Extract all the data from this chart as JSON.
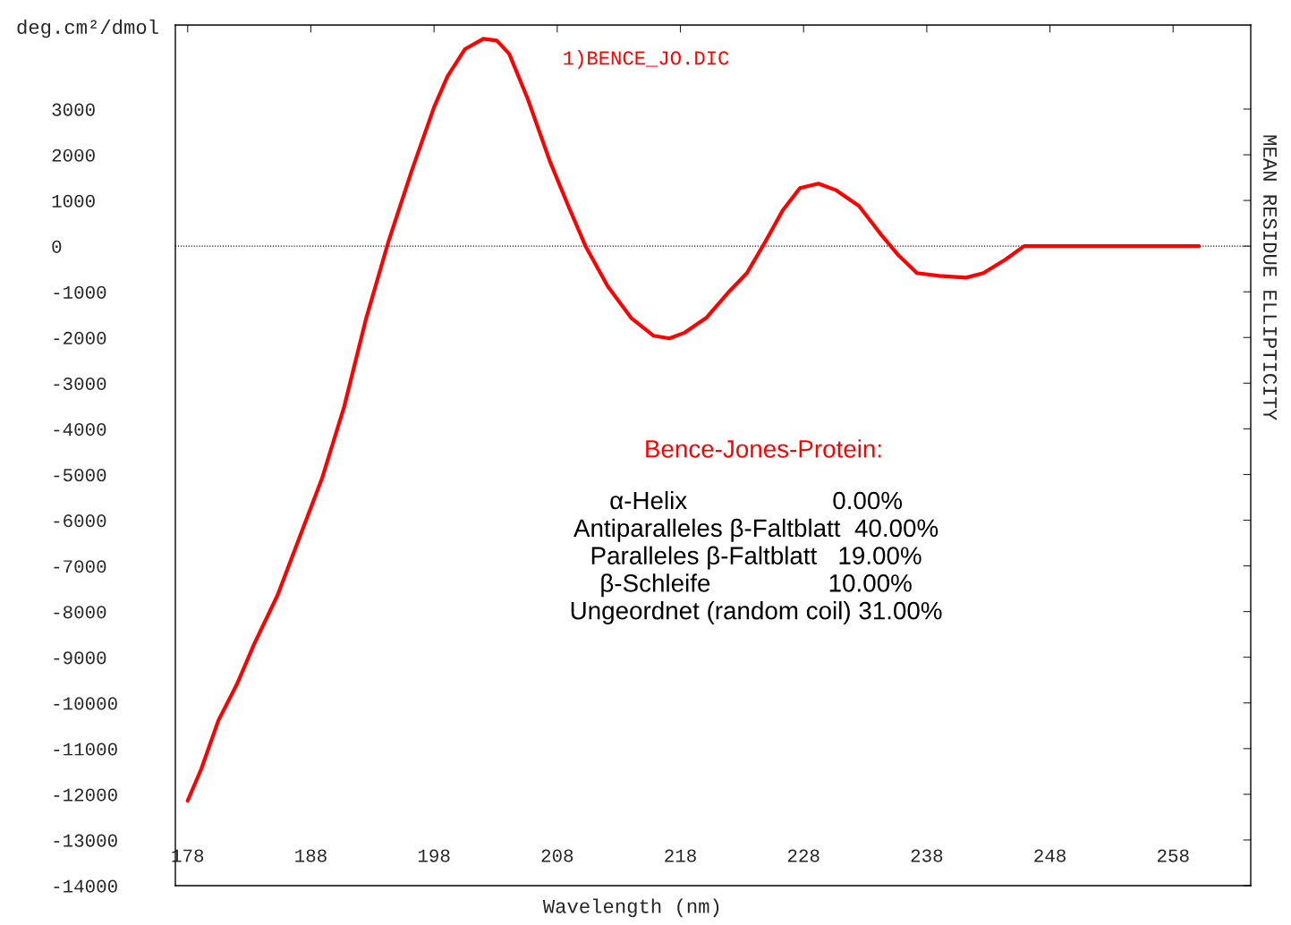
{
  "chart_data": {
    "type": "line",
    "ylabel": "deg.cm²/dmol",
    "xlabel": "Wavelength (nm)",
    "y2label": "MEAN RESIDUE ELLIPTICITY",
    "annotations": [
      "1)BENCE_JO.DIC",
      "Bence-Jones-Protein:",
      "α-Helix                     0.00%",
      "Antiparalleles β-Faltblatt  40.00%",
      "Paralleles β-Faltblatt   19.00%",
      "β-Schleife                 10.00%",
      "Ungeordnet (random coil) 31.00%"
    ],
    "series": [
      {
        "color": "#ff0000",
        "x": [
          178.0,
          179.1,
          180.5,
          182.0,
          183.4,
          185.3,
          187.1,
          188.9,
          190.7,
          192.5,
          194.3,
          196.2,
          198.0,
          199.1,
          200.5,
          202.0,
          203.1,
          204.1,
          205.6,
          207.4,
          208.9,
          210.3,
          212.1,
          214.0,
          215.8,
          217.1,
          218.3,
          220.1,
          222.0,
          223.4,
          224.9,
          226.3,
          227.7,
          229.2,
          230.6,
          232.5,
          234.3,
          235.7,
          237.2,
          239.0,
          241.2,
          242.6,
          244.4,
          245.9,
          249.9,
          260.1
        ],
        "values": [
          -12140,
          -11450,
          -10380,
          -9590,
          -8710,
          -7640,
          -6360,
          -5090,
          -3520,
          -1570,
          100,
          1660,
          3040,
          3720,
          4310,
          4540,
          4500,
          4210,
          3230,
          1860,
          880,
          0,
          -880,
          -1570,
          -1960,
          -2020,
          -1900,
          -1570,
          -980,
          -590,
          100,
          780,
          1270,
          1370,
          1230,
          880,
          250,
          -200,
          -590,
          -650,
          -690,
          -590,
          -290,
          0,
          0,
          0
        ]
      }
    ],
    "xlim": [
      177.0,
      264.3
    ],
    "xticks": [
      178,
      188,
      198,
      208,
      218,
      228,
      238,
      248,
      258
    ],
    "ylim": [
      -14000,
      4840
    ],
    "yticks": [
      -14000,
      -13000,
      -12000,
      -11000,
      -10000,
      -9000,
      -8000,
      -7000,
      -6000,
      -5000,
      -4000,
      -3000,
      -2000,
      -1000,
      0,
      1000,
      2000,
      3000
    ],
    "ref_lines": [
      {
        "axis": "y",
        "value": 0,
        "color": "#000000",
        "line_style": "dotted"
      }
    ],
    "grid": false,
    "legend": false,
    "marker": "none",
    "line_style": "solid"
  }
}
